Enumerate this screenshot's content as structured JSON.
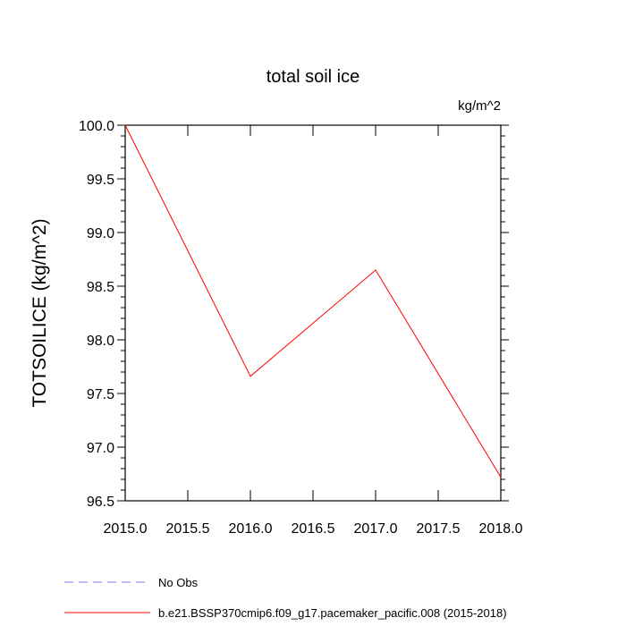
{
  "chart_data": {
    "type": "line",
    "title": "total soil ice",
    "units_label": "kg/m^2",
    "xlabel": "",
    "ylabel": "TOTSOILICE  (kg/m^2)",
    "xlim": [
      2015.0,
      2018.0
    ],
    "ylim": [
      96.5,
      100.0
    ],
    "x_ticks": [
      "2015.0",
      "2015.5",
      "2016.0",
      "2016.5",
      "2017.0",
      "2017.5",
      "2018.0"
    ],
    "y_ticks": [
      "96.5",
      "97.0",
      "97.5",
      "98.0",
      "98.5",
      "99.0",
      "99.5",
      "100.0"
    ],
    "series": [
      {
        "name": "b.e21.BSSP370cmip6.f09_g17.pacemaker_pacific.008 (2015-2018)",
        "color": "#ff0000",
        "x": [
          2015.0,
          2016.0,
          2017.0,
          2018.0
        ],
        "y": [
          100.0,
          97.66,
          98.65,
          96.72
        ]
      }
    ],
    "legend": [
      {
        "label": "No Obs",
        "color": "#8080ff",
        "style": "dashed"
      },
      {
        "label": "b.e21.BSSP370cmip6.f09_g17.pacemaker_pacific.008 (2015-2018)",
        "color": "#ff0000",
        "style": "solid"
      }
    ],
    "grid": false
  }
}
